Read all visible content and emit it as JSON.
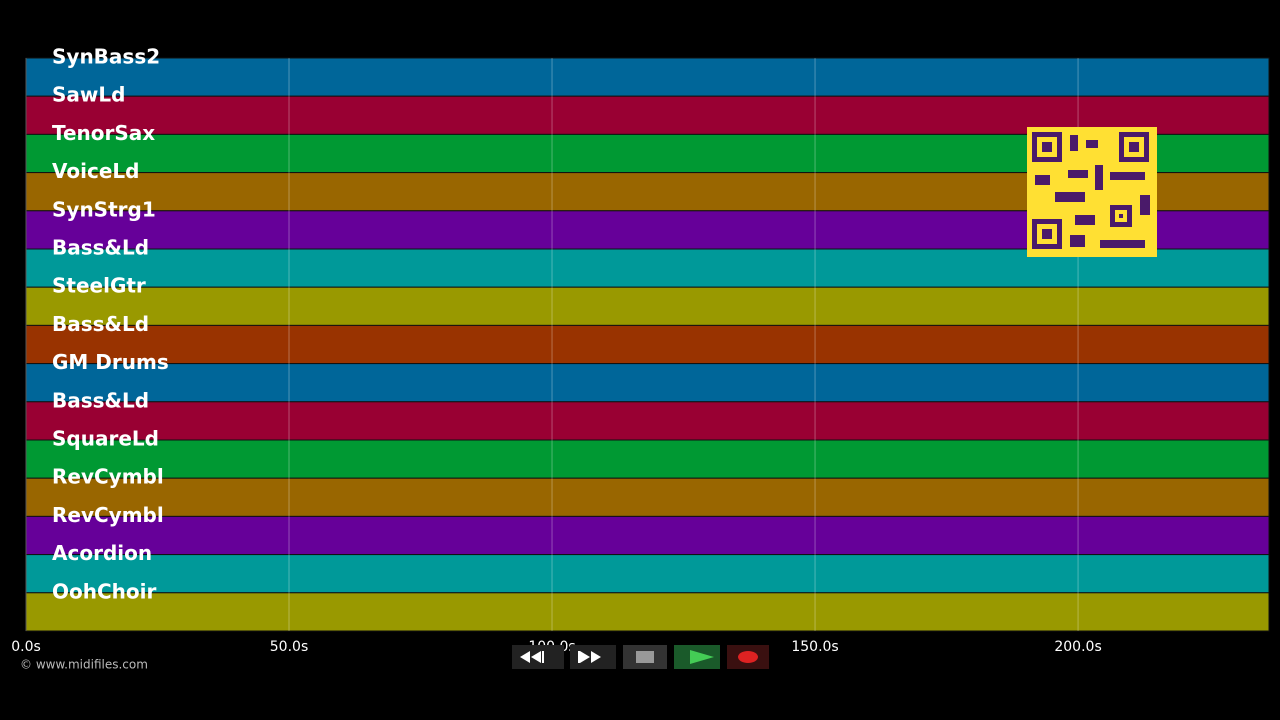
{
  "timeline": {
    "tracks": [
      {
        "name": "SynBass2",
        "color": "#006699"
      },
      {
        "name": "SawLd",
        "color": "#990033"
      },
      {
        "name": "TenorSax",
        "color": "#009933"
      },
      {
        "name": "VoiceLd",
        "color": "#996600"
      },
      {
        "name": "SynStrg1",
        "color": "#660099"
      },
      {
        "name": "Bass&Ld",
        "color": "#009999"
      },
      {
        "name": "SteelGtr",
        "color": "#999900"
      },
      {
        "name": "Bass&Ld",
        "color": "#993300"
      },
      {
        "name": "GM Drums",
        "color": "#006699"
      },
      {
        "name": "Bass&Ld",
        "color": "#990033"
      },
      {
        "name": "SquareLd",
        "color": "#009933"
      },
      {
        "name": "RevCymbl",
        "color": "#996600"
      },
      {
        "name": "RevCymbl",
        "color": "#660099"
      },
      {
        "name": "Acordion",
        "color": "#009999"
      },
      {
        "name": "OohChoir",
        "color": "#999900"
      }
    ],
    "xlim": [
      0,
      236.3
    ],
    "xticks": [
      {
        "value": 0,
        "label": "0.0s"
      },
      {
        "value": 50,
        "label": "50.0s"
      },
      {
        "value": 100,
        "label": "100.0s"
      },
      {
        "value": 150,
        "label": "150.0s"
      },
      {
        "value": 200,
        "label": "200.0s"
      }
    ]
  },
  "footer": {
    "credit": "© www.midifiles.com"
  }
}
